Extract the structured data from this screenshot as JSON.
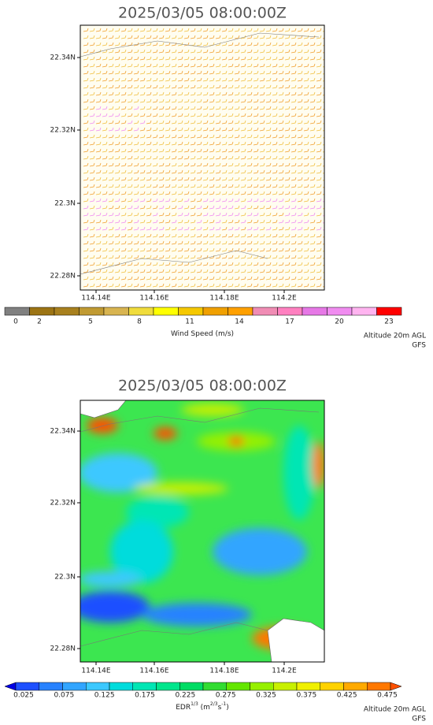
{
  "panels": [
    {
      "title": "2025/03/05 08:00:00Z",
      "lat_labels": [
        "22.34N",
        "22.32N",
        "22.3N",
        "22.28N"
      ],
      "lon_labels": [
        "114.14E",
        "114.16E",
        "114.18E",
        "114.2E"
      ],
      "colorbar": {
        "colors": [
          "#808080",
          "#9c7414",
          "#a8801e",
          "#c09a32",
          "#d8b450",
          "#f0dc3c",
          "#ffff00",
          "#f5c800",
          "#f0a000",
          "#ffa000",
          "#f08cb4",
          "#ff80c0",
          "#e678e6",
          "#f08cf0",
          "#ffb4f0",
          "#ff0000"
        ],
        "labels": [
          "0",
          "2",
          "5",
          "8",
          "11",
          "14",
          "17",
          "20",
          "23"
        ],
        "caption": [
          "Wind Speed (m/s)"
        ]
      },
      "footnote": [
        "Altitude 20m AGL",
        "GFS"
      ]
    },
    {
      "title": "2025/03/05 08:00:00Z",
      "lat_labels": [
        "22.34N",
        "22.32N",
        "22.3N",
        "22.28N"
      ],
      "lon_labels": [
        "114.14E",
        "114.16E",
        "114.18E",
        "114.2E"
      ],
      "colorbar": {
        "colors": [
          "#0000e6",
          "#1e50ff",
          "#2882ff",
          "#32a5ff",
          "#3cc8ff",
          "#00dcdc",
          "#00e6b4",
          "#00e68c",
          "#00dc64",
          "#32dc32",
          "#64e600",
          "#96f000",
          "#c8f000",
          "#f0f000",
          "#ffd200",
          "#ffaa00",
          "#ff7800",
          "#ff5000"
        ],
        "labels": [
          "0.025",
          "0.075",
          "0.125",
          "0.175",
          "0.225",
          "0.275",
          "0.325",
          "0.375",
          "0.425",
          "0.475"
        ],
        "caption": [
          "EDR",
          "1/3",
          " (m",
          "2/3",
          "s",
          "-1",
          ")"
        ]
      },
      "footnote": [
        "Altitude 20m AGL",
        "GFS"
      ]
    }
  ]
}
